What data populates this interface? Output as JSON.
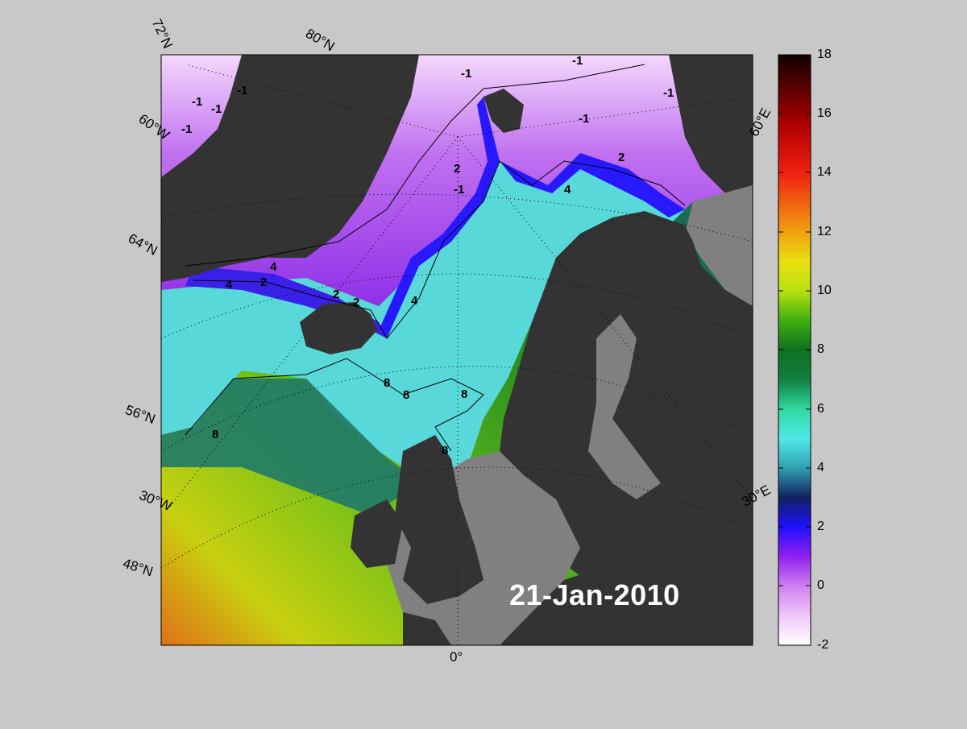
{
  "map": {
    "date": "21-Jan-2010",
    "lat_labels": [
      "72°N",
      "64°N",
      "56°N",
      "48°N"
    ],
    "lon_labels": [
      "60°W",
      "30°W",
      "0°",
      "30°E",
      "60°E"
    ],
    "pole_label": "80°N",
    "contour_labels": [
      "-1",
      "-1",
      "-1",
      "-1",
      "-1",
      "-1",
      "-1",
      "-1",
      "-1",
      "2",
      "2",
      "2",
      "2",
      "2",
      "4",
      "4",
      "4",
      "4",
      "8",
      "8",
      "8",
      "8",
      "8"
    ]
  },
  "colorbar": {
    "ticks": [
      "18",
      "16",
      "14",
      "12",
      "10",
      "8",
      "6",
      "4",
      "2",
      "0",
      "-2"
    ],
    "min": -2,
    "max": 18
  },
  "colors": {
    "land": "#333333",
    "shelf": "#808080",
    "background": "#c8c8c8"
  }
}
